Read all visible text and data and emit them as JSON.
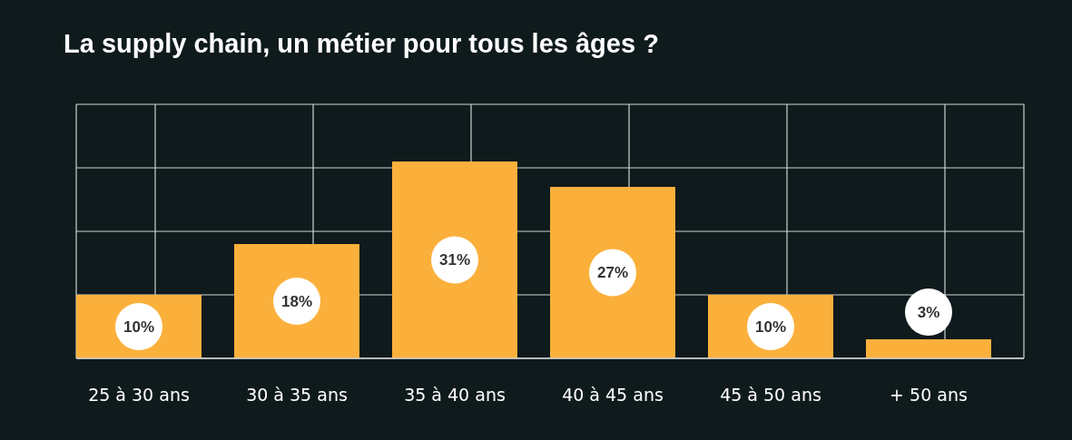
{
  "chart_data": {
    "type": "bar",
    "title": "La supply chain, un métier pour tous les âges ?",
    "categories": [
      "25 à 30 ans",
      "30 à 35 ans",
      "35 à 40 ans",
      "40 à 45 ans",
      "45 à 50 ans",
      "+ 50 ans"
    ],
    "values": [
      10,
      18,
      31,
      27,
      10,
      3
    ],
    "value_labels": [
      "10%",
      "18%",
      "31%",
      "27%",
      "10%",
      "3%"
    ],
    "color": "#fbb03b",
    "ylim": [
      0,
      40
    ],
    "yticks": [
      {
        "value": 0,
        "label": null
      },
      {
        "value": 10,
        "label": null
      },
      {
        "value": 20,
        "label": null
      },
      {
        "value": 30,
        "label": null
      },
      {
        "value": 40,
        "label": null
      }
    ],
    "grid": true,
    "tick_labels": "x"
  }
}
